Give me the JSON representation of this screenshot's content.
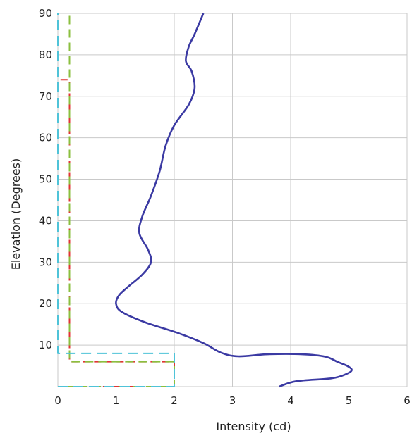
{
  "chart_data": {
    "type": "line",
    "title": "",
    "xlabel": "Intensity (cd)",
    "ylabel": "Elevation (Degrees)",
    "xlim": [
      0,
      6
    ],
    "ylim": [
      0,
      90
    ],
    "xticks": [
      0,
      1,
      2,
      3,
      4,
      5,
      6
    ],
    "yticks": [
      10,
      20,
      30,
      40,
      50,
      60,
      70,
      80,
      90
    ],
    "grid": true,
    "legend": "none",
    "series": [
      {
        "color": "#3b3aa3",
        "style": "solid",
        "points": [
          [
            3.8,
            0
          ],
          [
            4.1,
            1.3
          ],
          [
            4.7,
            2.0
          ],
          [
            4.95,
            3.0
          ],
          [
            5.05,
            4.0
          ],
          [
            4.97,
            5.0
          ],
          [
            4.8,
            6.0
          ],
          [
            4.6,
            7.2
          ],
          [
            4.2,
            7.8
          ],
          [
            3.6,
            7.8
          ],
          [
            3.1,
            7.3
          ],
          [
            2.8,
            8.2
          ],
          [
            2.5,
            10.5
          ],
          [
            2.05,
            13.0
          ],
          [
            1.5,
            15.5
          ],
          [
            1.1,
            18.0
          ],
          [
            1.0,
            20.0
          ],
          [
            1.05,
            22.0
          ],
          [
            1.2,
            24.0
          ],
          [
            1.45,
            27.0
          ],
          [
            1.6,
            30.0
          ],
          [
            1.55,
            33.0
          ],
          [
            1.4,
            37.0
          ],
          [
            1.45,
            41.0
          ],
          [
            1.6,
            46.0
          ],
          [
            1.75,
            52.0
          ],
          [
            1.85,
            58.0
          ],
          [
            2.0,
            63.0
          ],
          [
            2.25,
            68.0
          ],
          [
            2.35,
            72.0
          ],
          [
            2.3,
            76.0
          ],
          [
            2.2,
            78.5
          ],
          [
            2.25,
            82.0
          ],
          [
            2.35,
            85.0
          ],
          [
            2.5,
            90.0
          ]
        ]
      },
      {
        "color": "#e03434",
        "style": "dashed",
        "points": [
          [
            0,
            0
          ],
          [
            2,
            0
          ],
          [
            2,
            6
          ],
          [
            0.2,
            6
          ],
          [
            0.2,
            74
          ],
          [
            0,
            74
          ]
        ]
      },
      {
        "color": "#8bbf3f",
        "style": "dashed",
        "points": [
          [
            0,
            0
          ],
          [
            2,
            0
          ],
          [
            2,
            6
          ],
          [
            0.2,
            6
          ],
          [
            0.2,
            90
          ]
        ]
      },
      {
        "color": "#4fc3d8",
        "style": "dashed",
        "points": [
          [
            0,
            0
          ],
          [
            2,
            0
          ],
          [
            2,
            8
          ],
          [
            0,
            8
          ],
          [
            0,
            90
          ]
        ]
      }
    ]
  }
}
